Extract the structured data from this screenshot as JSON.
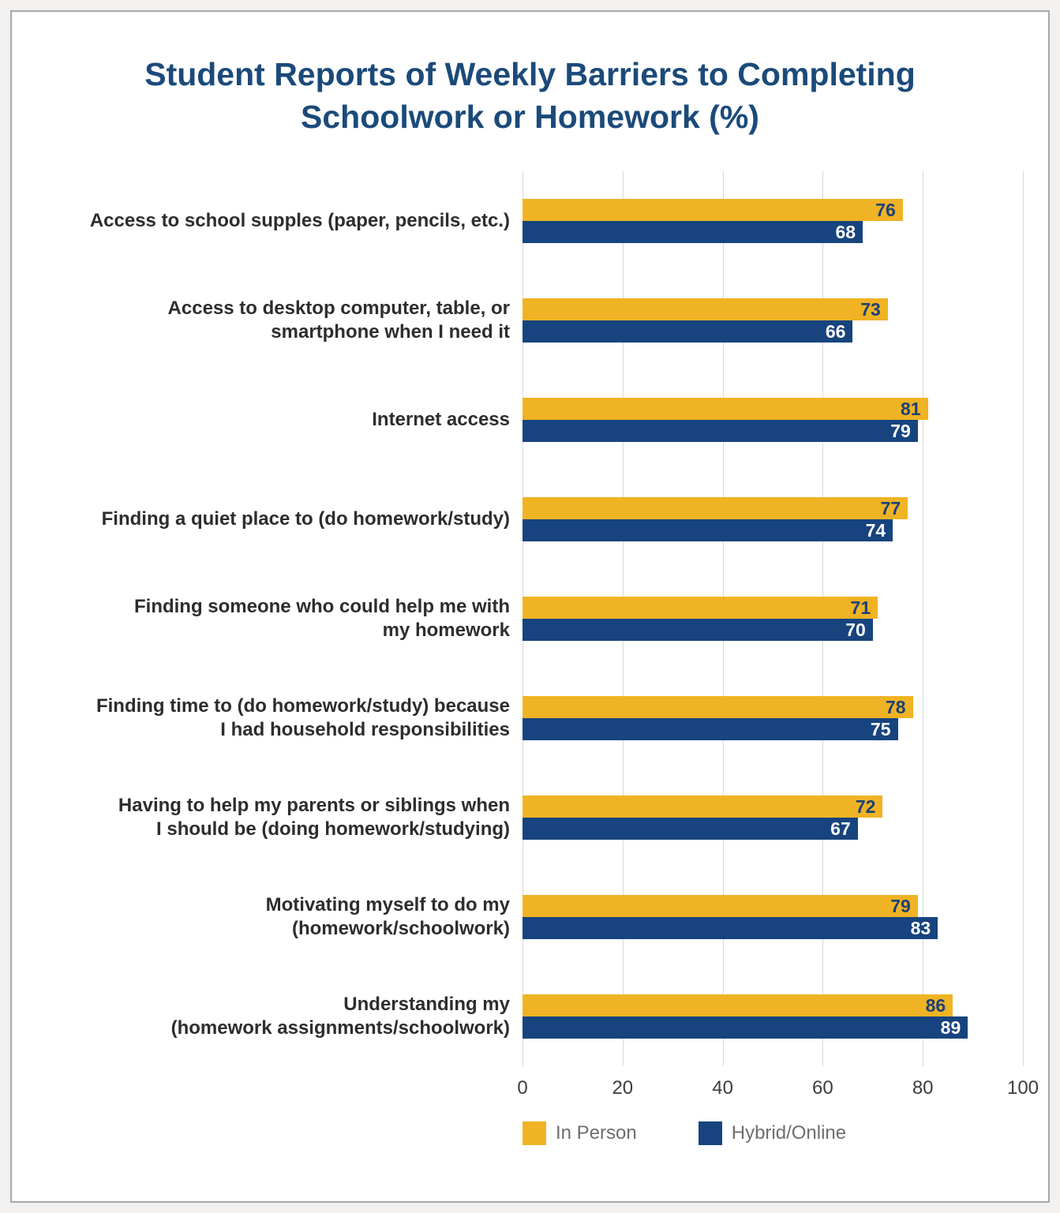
{
  "chart_data": {
    "type": "bar",
    "orientation": "horizontal",
    "title": "Student Reports of Weekly Barriers to Completing Schoolwork or Homework (%)",
    "title_color": "#1b4a7a",
    "categories": [
      "Access to school supples (paper, pencils, etc.)",
      "Access to desktop computer, table, or\nsmartphone when I need it",
      "Internet access",
      "Finding a quiet place to (do homework/study)",
      "Finding someone who could help me with\nmy homework",
      "Finding time to (do homework/study) because\nI had household responsibilities",
      "Having to help my parents or siblings when\nI should be (doing homework/studying)",
      "Motivating myself to do my\n(homework/schoolwork)",
      "Understanding my\n(homework assignments/schoolwork)"
    ],
    "series": [
      {
        "name": "In Person",
        "color": "#f0b323",
        "label_color": "#1b4178",
        "values": [
          76,
          73,
          81,
          77,
          71,
          78,
          72,
          79,
          86
        ]
      },
      {
        "name": "Hybrid/Online",
        "color": "#17447e",
        "label_color": "#ffffff",
        "values": [
          68,
          66,
          79,
          74,
          70,
          75,
          67,
          83,
          89
        ]
      }
    ],
    "x_ticks": [
      0,
      20,
      40,
      60,
      80,
      100
    ],
    "xlim": [
      0,
      100
    ],
    "grid": true,
    "gridline_color": "#d9d9d9",
    "legend_position": "bottom"
  }
}
